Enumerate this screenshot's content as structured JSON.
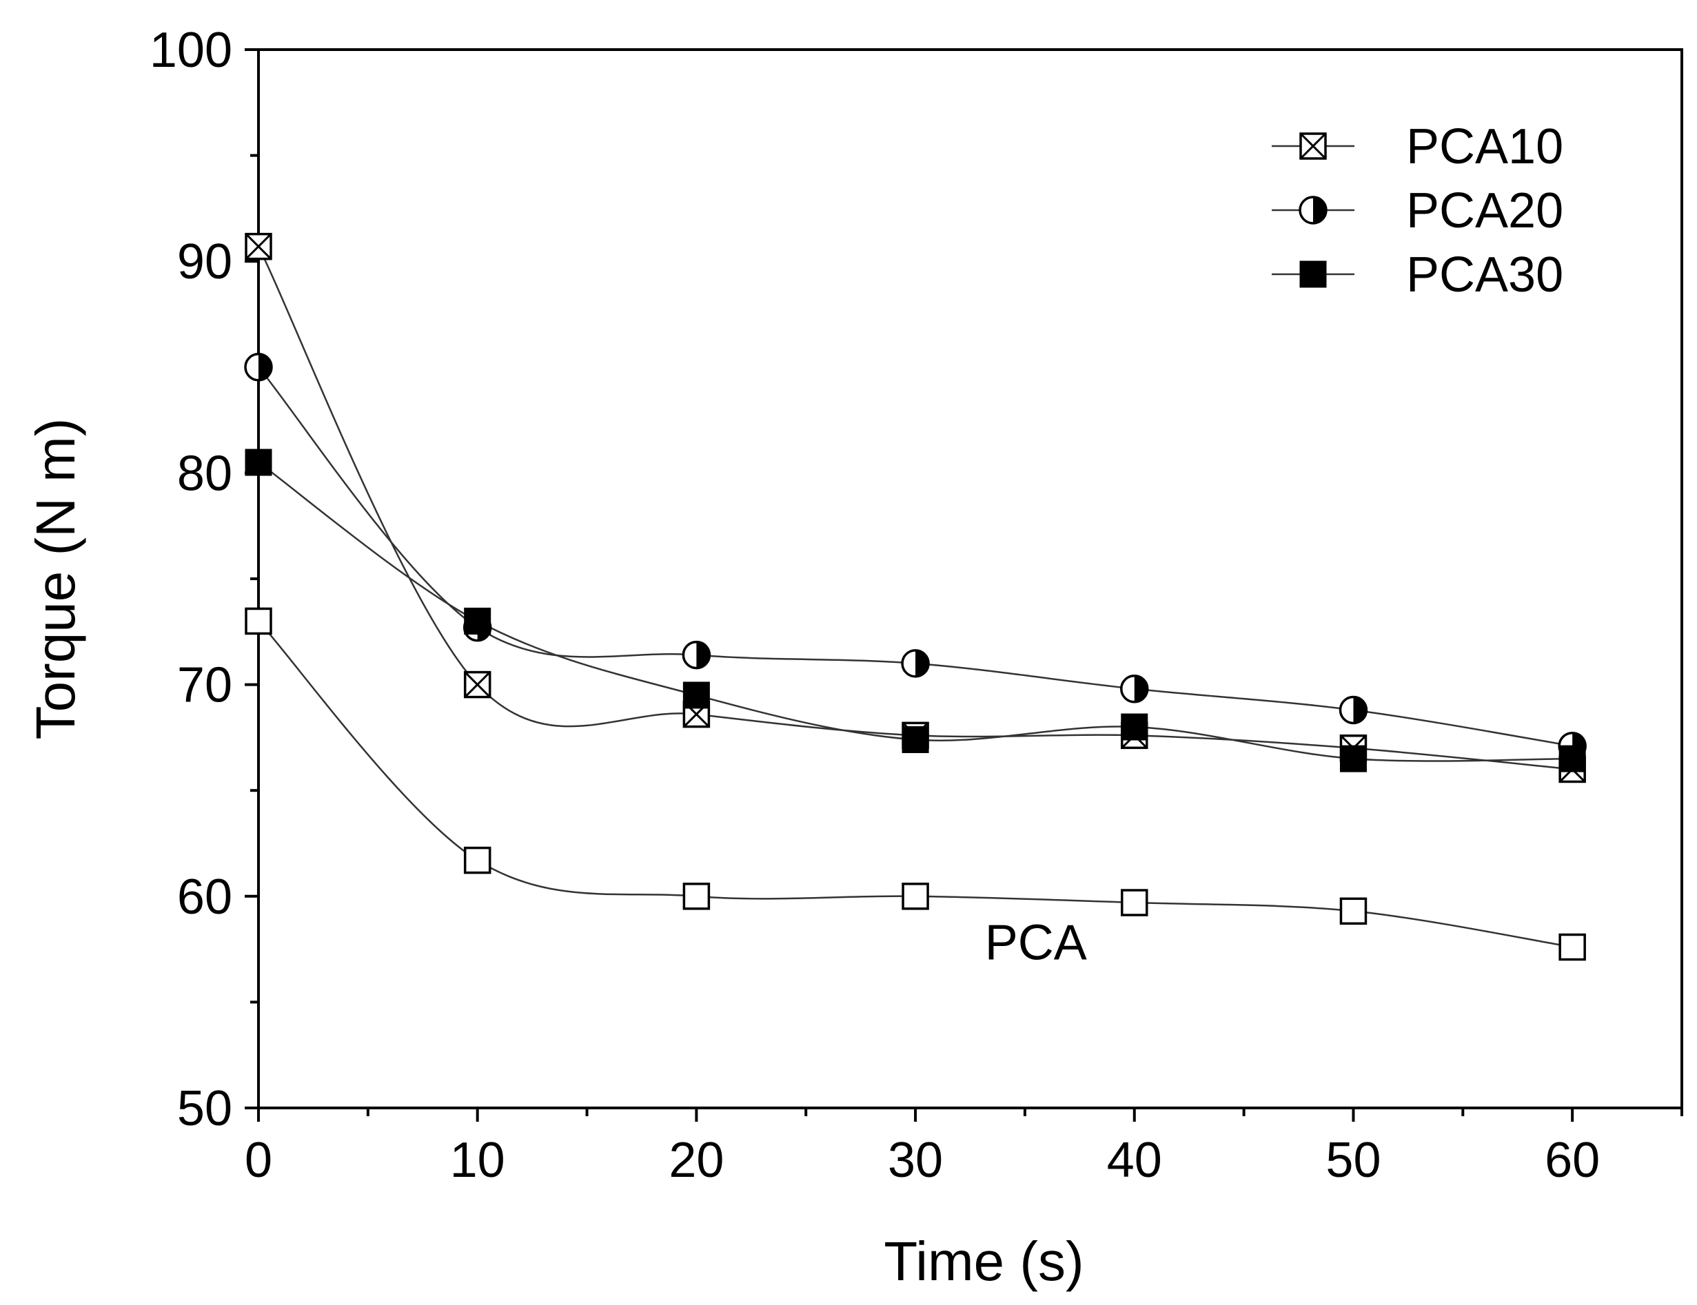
{
  "chart_data": {
    "type": "line",
    "title": "",
    "xlabel": "Time (s)",
    "ylabel": "Torque (N m)",
    "xlim": [
      0,
      65
    ],
    "ylim": [
      50,
      100
    ],
    "x_ticks": [
      0,
      10,
      20,
      30,
      40,
      50,
      60
    ],
    "y_ticks": [
      50,
      60,
      70,
      80,
      90,
      100
    ],
    "x_tick_labels": [
      "0",
      "10",
      "20",
      "30",
      "40",
      "50",
      "60"
    ],
    "y_tick_labels": [
      "50",
      "60",
      "70",
      "80",
      "90",
      "100"
    ],
    "grid": false,
    "legend_position": "top-right",
    "x": [
      0,
      10,
      20,
      30,
      40,
      50,
      60
    ],
    "series": [
      {
        "name": "PCA10",
        "marker": "square-x",
        "values": [
          90.7,
          70.0,
          68.6,
          67.6,
          67.6,
          67.0,
          66.0
        ]
      },
      {
        "name": "PCA20",
        "marker": "half-circle",
        "values": [
          85.0,
          72.7,
          71.4,
          71.0,
          69.8,
          68.8,
          67.1
        ]
      },
      {
        "name": "PCA30",
        "marker": "filled-square",
        "values": [
          80.5,
          73.0,
          69.5,
          67.4,
          68.0,
          66.5,
          66.5
        ]
      },
      {
        "name": "PCA",
        "marker": "open-square",
        "values": [
          73.0,
          61.7,
          60.0,
          60.0,
          59.7,
          59.3,
          57.6
        ]
      }
    ],
    "legend": [
      "PCA10",
      "PCA20",
      "PCA30"
    ],
    "annotations": [
      {
        "text": "PCA",
        "x": 35.5,
        "y": 57.8
      }
    ]
  }
}
